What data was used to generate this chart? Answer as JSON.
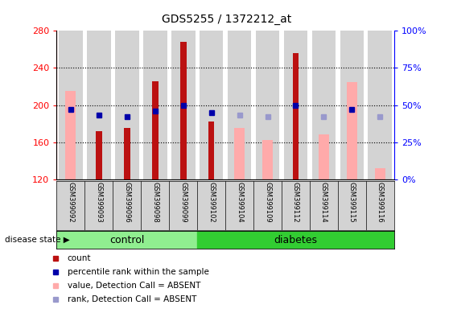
{
  "title": "GDS5255 / 1372212_at",
  "samples": [
    "GSM399092",
    "GSM399093",
    "GSM399096",
    "GSM399098",
    "GSM399099",
    "GSM399102",
    "GSM399104",
    "GSM399109",
    "GSM399112",
    "GSM399114",
    "GSM399115",
    "GSM399116"
  ],
  "n_control": 5,
  "n_diabetes": 7,
  "count_values": [
    null,
    172,
    175,
    226,
    268,
    182,
    null,
    null,
    256,
    null,
    null,
    null
  ],
  "pink_bar_values": [
    215,
    null,
    null,
    null,
    null,
    null,
    175,
    162,
    null,
    168,
    225,
    132
  ],
  "blue_sq_pct": [
    47,
    43,
    42,
    46,
    50,
    45,
    null,
    null,
    50,
    null,
    47,
    null
  ],
  "light_blue_pct": [
    null,
    null,
    null,
    null,
    null,
    null,
    43,
    42,
    null,
    42,
    null,
    42
  ],
  "ylim": [
    120,
    280
  ],
  "y_ticks": [
    120,
    160,
    200,
    240,
    280
  ],
  "y2_ticks": [
    0,
    25,
    50,
    75,
    100
  ],
  "y2_tick_labels": [
    "0%",
    "25%",
    "50%",
    "75%",
    "100%"
  ],
  "bg_color": "#D3D3D3",
  "white_bg": "#FFFFFF",
  "control_color": "#90EE90",
  "diabetes_color": "#32CD32",
  "red_color": "#BB1111",
  "pink_color": "#FFAAAA",
  "blue_color": "#0000AA",
  "light_blue_color": "#9999CC",
  "legend_items": [
    {
      "color": "#BB1111",
      "label": "count"
    },
    {
      "color": "#0000AA",
      "label": "percentile rank within the sample"
    },
    {
      "color": "#FFAAAA",
      "label": "value, Detection Call = ABSENT"
    },
    {
      "color": "#9999CC",
      "label": "rank, Detection Call = ABSENT"
    }
  ]
}
